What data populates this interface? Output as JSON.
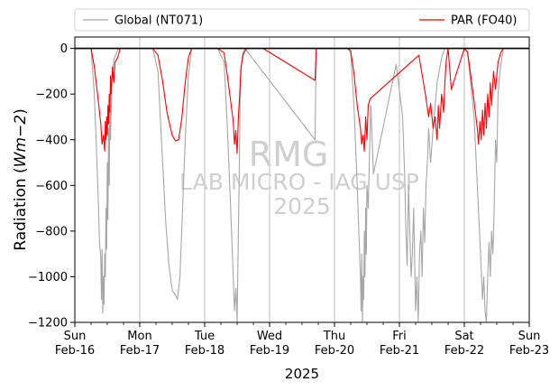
{
  "chart_data": {
    "type": "line",
    "xlabel": "2025",
    "ylabel_main": "Radiation (",
    "ylabel_unit": "Wm−2",
    "ylabel_close": ")",
    "ylim": [
      -1200,
      50
    ],
    "yticks": [
      0,
      -200,
      -400,
      -600,
      -800,
      -1000,
      -1200
    ],
    "ytick_labels": [
      "0",
      "−200",
      "−400",
      "−600",
      "−800",
      "−1000",
      "−1200"
    ],
    "xlim": [
      "2025-02-16",
      "2025-02-23"
    ],
    "xticks": [
      {
        "day": "Sun",
        "date": "Feb-16"
      },
      {
        "day": "Mon",
        "date": "Feb-17"
      },
      {
        "day": "Tue",
        "date": "Feb-18"
      },
      {
        "day": "Wed",
        "date": "Feb-19"
      },
      {
        "day": "Thu",
        "date": "Feb-20"
      },
      {
        "day": "Fri",
        "date": "Feb-21"
      },
      {
        "day": "Sat",
        "date": "Feb-22"
      },
      {
        "day": "Sun",
        "date": "Feb-23"
      }
    ],
    "grid": "vertical",
    "legend_position": "top",
    "watermark": [
      "RMG",
      "LAB MICRO - IAG USP",
      "2025"
    ],
    "series": [
      {
        "name": "Global (NT071)",
        "color": "#a6a6a6",
        "points": [
          [
            0.0,
            0
          ],
          [
            0.25,
            0
          ],
          [
            0.3,
            -200
          ],
          [
            0.33,
            -420
          ],
          [
            0.36,
            -650
          ],
          [
            0.38,
            -850
          ],
          [
            0.4,
            -920
          ],
          [
            0.41,
            -1100
          ],
          [
            0.42,
            -880
          ],
          [
            0.43,
            -1160
          ],
          [
            0.44,
            -1000
          ],
          [
            0.45,
            -1120
          ],
          [
            0.46,
            -900
          ],
          [
            0.47,
            -1000
          ],
          [
            0.48,
            -700
          ],
          [
            0.49,
            -880
          ],
          [
            0.5,
            -500
          ],
          [
            0.51,
            -750
          ],
          [
            0.52,
            -350
          ],
          [
            0.53,
            -600
          ],
          [
            0.54,
            -200
          ],
          [
            0.55,
            -400
          ],
          [
            0.57,
            -150
          ],
          [
            0.6,
            -50
          ],
          [
            0.66,
            -5
          ],
          [
            0.7,
            0
          ],
          [
            1.2,
            0
          ],
          [
            1.28,
            -100
          ],
          [
            1.33,
            -380
          ],
          [
            1.4,
            -760
          ],
          [
            1.45,
            -950
          ],
          [
            1.5,
            -1060
          ],
          [
            1.55,
            -1080
          ],
          [
            1.58,
            -1100
          ],
          [
            1.62,
            -1000
          ],
          [
            1.66,
            -700
          ],
          [
            1.7,
            -400
          ],
          [
            1.75,
            -120
          ],
          [
            1.8,
            0
          ],
          [
            2.2,
            0
          ],
          [
            2.3,
            -60
          ],
          [
            2.35,
            -350
          ],
          [
            2.4,
            -700
          ],
          [
            2.44,
            -1000
          ],
          [
            2.46,
            -1150
          ],
          [
            2.48,
            -1050
          ],
          [
            2.5,
            -1200
          ],
          [
            2.51,
            -1000
          ],
          [
            2.52,
            -800
          ],
          [
            2.53,
            -600
          ],
          [
            2.54,
            -350
          ],
          [
            2.55,
            -150
          ],
          [
            2.58,
            -30
          ],
          [
            2.62,
            0
          ],
          [
            3.7,
            -400
          ],
          [
            3.72,
            0
          ],
          [
            4.2,
            0
          ],
          [
            4.25,
            -20
          ],
          [
            4.3,
            -250
          ],
          [
            4.35,
            -600
          ],
          [
            4.38,
            -850
          ],
          [
            4.4,
            -1000
          ],
          [
            4.41,
            -1150
          ],
          [
            4.42,
            -900
          ],
          [
            4.43,
            -1200
          ],
          [
            4.44,
            -1000
          ],
          [
            4.45,
            -1100
          ],
          [
            4.46,
            -800
          ],
          [
            4.47,
            -1000
          ],
          [
            4.48,
            -700
          ],
          [
            4.49,
            -900
          ],
          [
            4.5,
            -600
          ],
          [
            4.52,
            -700
          ],
          [
            4.54,
            -450
          ],
          [
            4.56,
            -250
          ],
          [
            4.58,
            -400
          ],
          [
            4.6,
            -550
          ],
          [
            4.95,
            -70
          ],
          [
            5.05,
            -300
          ],
          [
            5.08,
            -550
          ],
          [
            5.1,
            -800
          ],
          [
            5.12,
            -950
          ],
          [
            5.14,
            -600
          ],
          [
            5.16,
            -800
          ],
          [
            5.18,
            -1000
          ],
          [
            5.2,
            -900
          ],
          [
            5.22,
            -700
          ],
          [
            5.25,
            -1150
          ],
          [
            5.27,
            -1000
          ],
          [
            5.29,
            -1200
          ],
          [
            5.31,
            -900
          ],
          [
            5.33,
            -800
          ],
          [
            5.35,
            -1000
          ],
          [
            5.37,
            -700
          ],
          [
            5.39,
            -850
          ],
          [
            5.41,
            -600
          ],
          [
            5.43,
            -500
          ],
          [
            5.45,
            -350
          ],
          [
            5.48,
            -500
          ],
          [
            5.52,
            -350
          ],
          [
            5.58,
            -150
          ],
          [
            5.65,
            -40
          ],
          [
            5.7,
            0
          ],
          [
            6.0,
            0
          ],
          [
            6.05,
            -20
          ],
          [
            6.15,
            -300
          ],
          [
            6.2,
            -600
          ],
          [
            6.25,
            -900
          ],
          [
            6.28,
            -1100
          ],
          [
            6.3,
            -1000
          ],
          [
            6.32,
            -1150
          ],
          [
            6.34,
            -1200
          ],
          [
            6.36,
            -1000
          ],
          [
            6.38,
            -850
          ],
          [
            6.4,
            -1000
          ],
          [
            6.42,
            -800
          ],
          [
            6.44,
            -900
          ],
          [
            6.46,
            -700
          ],
          [
            6.48,
            -400
          ],
          [
            6.5,
            -500
          ],
          [
            6.52,
            -200
          ],
          [
            6.55,
            -100
          ],
          [
            6.6,
            0
          ],
          [
            7.0,
            0
          ]
        ]
      },
      {
        "name": "PAR (FO40)",
        "color": "#ff0000",
        "points": [
          [
            0.0,
            0
          ],
          [
            0.25,
            0
          ],
          [
            0.3,
            -80
          ],
          [
            0.35,
            -200
          ],
          [
            0.4,
            -330
          ],
          [
            0.42,
            -420
          ],
          [
            0.44,
            -380
          ],
          [
            0.46,
            -450
          ],
          [
            0.47,
            -320
          ],
          [
            0.48,
            -400
          ],
          [
            0.49,
            -300
          ],
          [
            0.5,
            -380
          ],
          [
            0.51,
            -250
          ],
          [
            0.52,
            -330
          ],
          [
            0.53,
            -200
          ],
          [
            0.54,
            -280
          ],
          [
            0.55,
            -120
          ],
          [
            0.56,
            -200
          ],
          [
            0.58,
            -80
          ],
          [
            0.6,
            -150
          ],
          [
            0.62,
            -60
          ],
          [
            0.66,
            -40
          ],
          [
            0.7,
            0
          ],
          [
            1.2,
            0
          ],
          [
            1.28,
            -30
          ],
          [
            1.35,
            -140
          ],
          [
            1.42,
            -280
          ],
          [
            1.5,
            -380
          ],
          [
            1.55,
            -405
          ],
          [
            1.6,
            -400
          ],
          [
            1.65,
            -300
          ],
          [
            1.7,
            -150
          ],
          [
            1.75,
            -40
          ],
          [
            1.8,
            0
          ],
          [
            2.2,
            0
          ],
          [
            2.3,
            -20
          ],
          [
            2.35,
            -120
          ],
          [
            2.4,
            -230
          ],
          [
            2.44,
            -320
          ],
          [
            2.46,
            -420
          ],
          [
            2.48,
            -360
          ],
          [
            2.5,
            -460
          ],
          [
            2.52,
            -300
          ],
          [
            2.54,
            -200
          ],
          [
            2.56,
            -80
          ],
          [
            2.6,
            -20
          ],
          [
            2.65,
            0
          ],
          [
            2.9,
            0
          ],
          [
            3.7,
            -140
          ],
          [
            3.72,
            0
          ],
          [
            4.2,
            0
          ],
          [
            4.25,
            -10
          ],
          [
            4.3,
            -110
          ],
          [
            4.35,
            -250
          ],
          [
            4.4,
            -350
          ],
          [
            4.42,
            -420
          ],
          [
            4.44,
            -380
          ],
          [
            4.46,
            -450
          ],
          [
            4.48,
            -300
          ],
          [
            4.5,
            -400
          ],
          [
            4.52,
            -250
          ],
          [
            4.55,
            -220
          ],
          [
            5.3,
            -30
          ],
          [
            5.4,
            -200
          ],
          [
            5.45,
            -300
          ],
          [
            5.48,
            -240
          ],
          [
            5.52,
            -350
          ],
          [
            5.55,
            -300
          ],
          [
            5.58,
            -400
          ],
          [
            5.6,
            -250
          ],
          [
            5.62,
            -350
          ],
          [
            5.65,
            -200
          ],
          [
            5.68,
            -280
          ],
          [
            5.7,
            -150
          ],
          [
            5.72,
            -60
          ],
          [
            5.75,
            0
          ],
          [
            5.8,
            -180
          ],
          [
            6.0,
            0
          ],
          [
            6.05,
            -15
          ],
          [
            6.1,
            -120
          ],
          [
            6.15,
            -230
          ],
          [
            6.2,
            -350
          ],
          [
            6.22,
            -420
          ],
          [
            6.24,
            -320
          ],
          [
            6.26,
            -400
          ],
          [
            6.28,
            -270
          ],
          [
            6.3,
            -380
          ],
          [
            6.32,
            -240
          ],
          [
            6.34,
            -350
          ],
          [
            6.36,
            -200
          ],
          [
            6.38,
            -300
          ],
          [
            6.4,
            -150
          ],
          [
            6.42,
            -250
          ],
          [
            6.45,
            -100
          ],
          [
            6.48,
            -180
          ],
          [
            6.52,
            -60
          ],
          [
            6.56,
            -20
          ],
          [
            6.6,
            0
          ],
          [
            7.0,
            0
          ]
        ]
      }
    ]
  }
}
